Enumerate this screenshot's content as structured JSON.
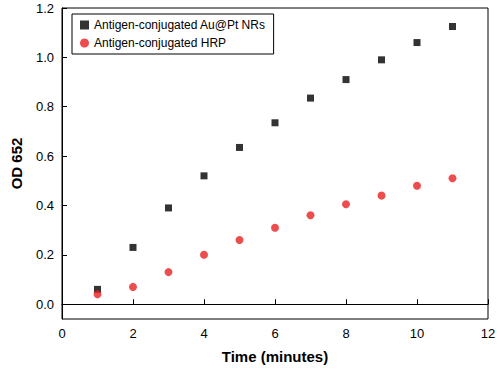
{
  "chart_data": {
    "type": "scatter",
    "x_label": "Time (minutes)",
    "y_label": "OD 652",
    "xlim": [
      0,
      12
    ],
    "xticks": [
      0,
      2,
      4,
      6,
      8,
      10,
      12
    ],
    "ylim": [
      -0.06,
      1.2
    ],
    "yticks": [
      {
        "value": 0,
        "label": "0.0"
      },
      0.2,
      0.4,
      0.6,
      0.8,
      {
        "value": 1,
        "label": "1.0"
      },
      1.2
    ],
    "grid": false,
    "legend": "upper left",
    "series": [
      {
        "name": "Antigen-conjugated Au@Pt NRs",
        "color": "#000000",
        "marker": "square",
        "x": [
          1,
          2,
          3,
          4,
          5,
          6,
          7,
          8,
          9,
          10,
          11
        ],
        "values": [
          0.06,
          0.23,
          0.39,
          0.52,
          0.635,
          0.735,
          0.835,
          0.91,
          0.99,
          1.06,
          1.125
        ]
      },
      {
        "name": "Antigen-conjugated HRP",
        "color": "#e8201f",
        "marker": "circle",
        "x": [
          1,
          2,
          3,
          4,
          5,
          6,
          7,
          8,
          9,
          10,
          11
        ],
        "values": [
          0.04,
          0.07,
          0.13,
          0.2,
          0.26,
          0.31,
          0.36,
          0.405,
          0.44,
          0.48,
          0.51
        ]
      }
    ]
  }
}
